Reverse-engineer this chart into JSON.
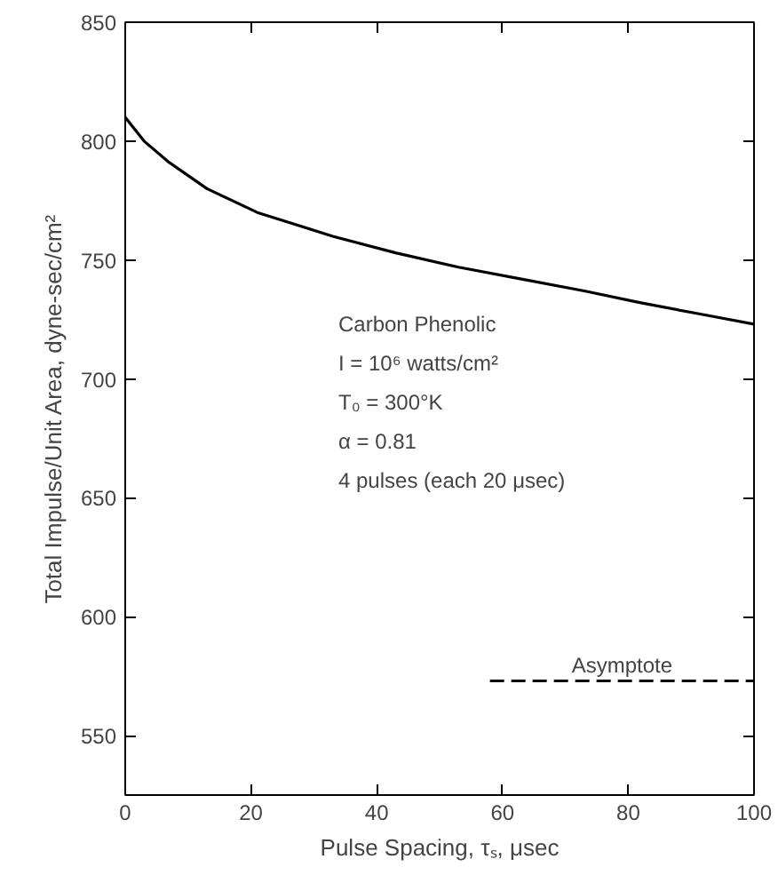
{
  "chart_data": {
    "type": "line",
    "xlabel": "Pulse Spacing, τₛ, μsec",
    "ylabel": "Total Impulse/Unit Area, dyne-sec/cm²",
    "x": [
      0,
      3,
      7,
      13,
      21,
      33,
      43,
      53,
      63,
      73,
      82,
      92,
      100
    ],
    "series": [
      {
        "color": "#000000",
        "values": [
          810,
          800,
          791,
          780,
          770,
          760,
          753,
          747,
          742,
          737,
          732,
          727,
          723
        ]
      },
      {
        "name": "Asymptote",
        "color": "#000000",
        "x": [
          58,
          100
        ],
        "values": [
          573,
          573
        ],
        "line_style": "dashed"
      }
    ],
    "xlim": [
      0,
      100
    ],
    "ylim": [
      525,
      850
    ],
    "xticks": [
      0,
      20,
      40,
      60,
      80,
      100
    ],
    "yticks": [
      550,
      600,
      650,
      700,
      750,
      800,
      850
    ],
    "grid": false,
    "marker": "none",
    "line_style": "solid",
    "annotations": [
      "Carbon Phenolic",
      "I = 10⁶ watts/cm²",
      "T₀ = 300°K",
      "α = 0.81",
      "4 pulses (each 20 μsec)"
    ]
  }
}
